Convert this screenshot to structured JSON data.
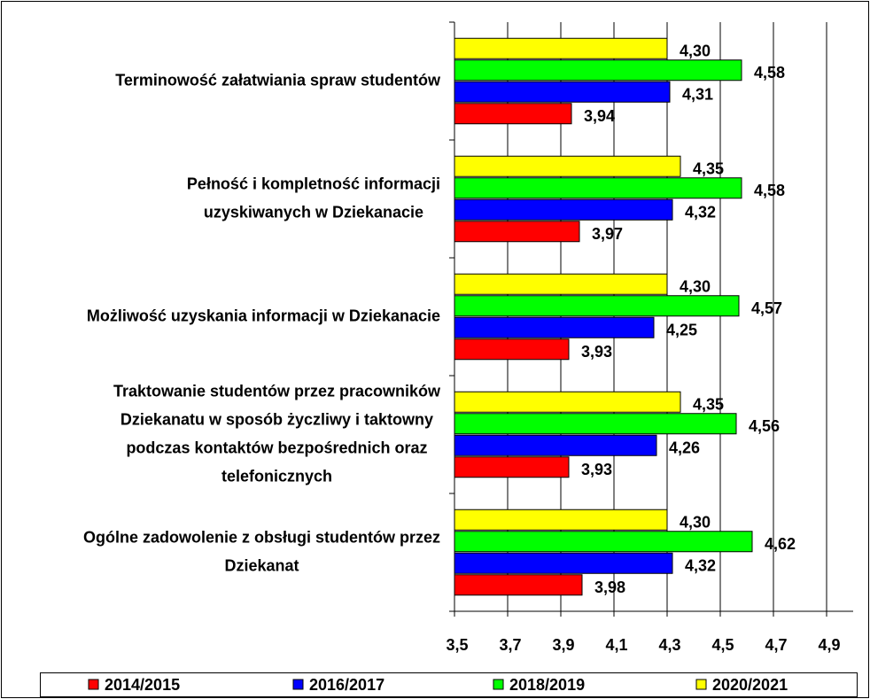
{
  "chart_data": {
    "type": "bar",
    "orientation": "horizontal",
    "categories": [
      [
        "Terminowość załatwiania spraw studentów"
      ],
      [
        "Pełność i kompletność informacji",
        "uzyskiwanych w Dziekanacie"
      ],
      [
        "Możliwość uzyskania informacji w Dziekanacie"
      ],
      [
        "Traktowanie studentów przez pracowników",
        "Dziekanatu w sposób życzliwy i taktowny",
        "podczas kontaktów bezpośrednich oraz",
        "telefonicznych"
      ],
      [
        "Ogólne zadowolenie z obsługi studentów przez",
        "Dziekanat"
      ]
    ],
    "series": [
      {
        "name": "2014/2015",
        "color": "#ff0000",
        "values": [
          3.94,
          3.97,
          3.93,
          3.93,
          3.98
        ],
        "value_labels": [
          "3,94",
          "3,97",
          "3,93",
          "3,93",
          "3,98"
        ]
      },
      {
        "name": "2016/2017",
        "color": "#0000ff",
        "values": [
          4.31,
          4.32,
          4.25,
          4.26,
          4.32
        ],
        "value_labels": [
          "4,31",
          "4,32",
          "4,25",
          "4,26",
          "4,32"
        ]
      },
      {
        "name": "2018/2019",
        "color": "#00ff00",
        "values": [
          4.58,
          4.58,
          4.57,
          4.56,
          4.62
        ],
        "value_labels": [
          "4,58",
          "4,58",
          "4,57",
          "4,56",
          "4,62"
        ]
      },
      {
        "name": "2020/2021",
        "color": "#ffff00",
        "values": [
          4.3,
          4.35,
          4.3,
          4.35,
          4.3
        ],
        "value_labels": [
          "4,30",
          "4,35",
          "4,30",
          "4,35",
          "4,30"
        ]
      }
    ],
    "xlim": [
      3.5,
      5.0
    ],
    "xticks": [
      {
        "value": 3.5,
        "label": "3,5"
      },
      {
        "value": 3.7,
        "label": "3,7"
      },
      {
        "value": 3.9,
        "label": "3,9"
      },
      {
        "value": 4.1,
        "label": "4,1"
      },
      {
        "value": 4.3,
        "label": "4,3"
      },
      {
        "value": 4.5,
        "label": "4,5"
      },
      {
        "value": 4.7,
        "label": "4,7"
      },
      {
        "value": 4.9,
        "label": "4,9"
      }
    ],
    "grid": true,
    "legend": "bottom"
  }
}
